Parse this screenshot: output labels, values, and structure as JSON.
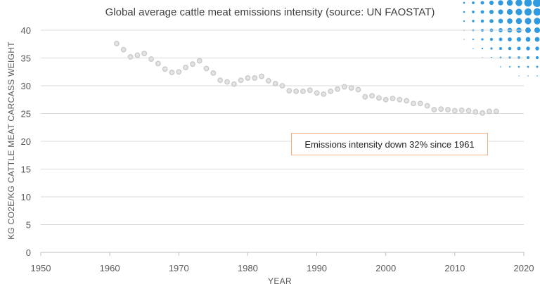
{
  "chart_data": {
    "type": "scatter",
    "title": "Global average cattle meat emissions intensity (source: UN FAOSTAT)",
    "xlabel": "YEAR",
    "ylabel": "KG CO2E/KG CATTLE MEAT CARCASS WEIGHT",
    "xlim": [
      1950,
      2020
    ],
    "ylim": [
      0,
      40
    ],
    "x_ticks": [
      1950,
      1960,
      1970,
      1980,
      1990,
      2000,
      2010,
      2020
    ],
    "y_ticks": [
      0,
      5,
      10,
      15,
      20,
      25,
      30,
      35,
      40
    ],
    "grid": "horizontal",
    "legend": "none",
    "marker_color": "#c9c9c9",
    "annotation": "Emissions intensity down 32% since 1961",
    "series": [
      {
        "x": [
          1961,
          1962,
          1963,
          1964,
          1965,
          1966,
          1967,
          1968,
          1969,
          1970,
          1971,
          1972,
          1973,
          1974,
          1975,
          1976,
          1977,
          1978,
          1979,
          1980,
          1981,
          1982,
          1983,
          1984,
          1985,
          1986,
          1987,
          1988,
          1989,
          1990,
          1991,
          1992,
          1993,
          1994,
          1995,
          1996,
          1997,
          1998,
          1999,
          2000,
          2001,
          2002,
          2003,
          2004,
          2005,
          2006,
          2007,
          2008,
          2009,
          2010,
          2011,
          2012,
          2013,
          2014,
          2015,
          2016
        ],
        "y": [
          37.6,
          36.5,
          35.2,
          35.5,
          35.8,
          34.8,
          34.0,
          33.0,
          32.4,
          32.5,
          33.3,
          33.9,
          34.5,
          33.1,
          32.3,
          31.0,
          30.7,
          30.3,
          31.0,
          31.4,
          31.4,
          31.7,
          30.9,
          30.4,
          30.0,
          29.1,
          29.0,
          29.0,
          29.2,
          28.7,
          28.5,
          29.0,
          29.4,
          29.8,
          29.6,
          29.3,
          28.0,
          28.2,
          27.8,
          27.5,
          27.7,
          27.5,
          27.3,
          26.8,
          26.8,
          26.4,
          25.7,
          25.8,
          25.7,
          25.5,
          25.6,
          25.5,
          25.3,
          25.1,
          25.4,
          25.4
        ]
      }
    ]
  }
}
